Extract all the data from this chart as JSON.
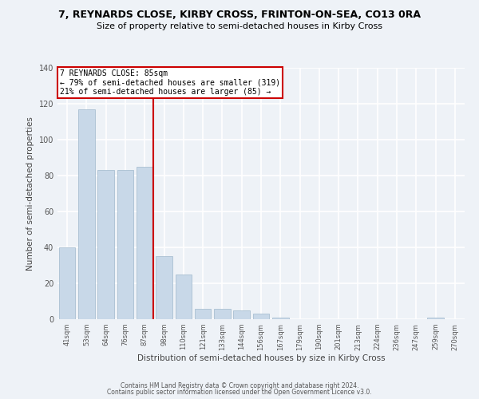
{
  "title1": "7, REYNARDS CLOSE, KIRBY CROSS, FRINTON-ON-SEA, CO13 0RA",
  "title2": "Size of property relative to semi-detached houses in Kirby Cross",
  "xlabel": "Distribution of semi-detached houses by size in Kirby Cross",
  "ylabel": "Number of semi-detached properties",
  "categories": [
    "41sqm",
    "53sqm",
    "64sqm",
    "76sqm",
    "87sqm",
    "98sqm",
    "110sqm",
    "121sqm",
    "133sqm",
    "144sqm",
    "156sqm",
    "167sqm",
    "179sqm",
    "190sqm",
    "201sqm",
    "213sqm",
    "224sqm",
    "236sqm",
    "247sqm",
    "259sqm",
    "270sqm"
  ],
  "values": [
    40,
    117,
    83,
    83,
    85,
    35,
    25,
    6,
    6,
    5,
    3,
    1,
    0,
    0,
    0,
    0,
    0,
    0,
    0,
    1,
    0
  ],
  "bar_color": "#c8d8e8",
  "bar_edgecolor": "#a0b8cc",
  "property_line_index": 4,
  "annotation_title": "7 REYNARDS CLOSE: 85sqm",
  "annotation_line1": "← 79% of semi-detached houses are smaller (319)",
  "annotation_line2": "21% of semi-detached houses are larger (85) →",
  "annotation_box_color": "#cc0000",
  "ylim": [
    0,
    140
  ],
  "yticks": [
    0,
    20,
    40,
    60,
    80,
    100,
    120,
    140
  ],
  "footer1": "Contains HM Land Registry data © Crown copyright and database right 2024.",
  "footer2": "Contains public sector information licensed under the Open Government Licence v3.0.",
  "background_color": "#eef2f7",
  "grid_color": "#ffffff",
  "title_fontsize": 9,
  "subtitle_fontsize": 8
}
